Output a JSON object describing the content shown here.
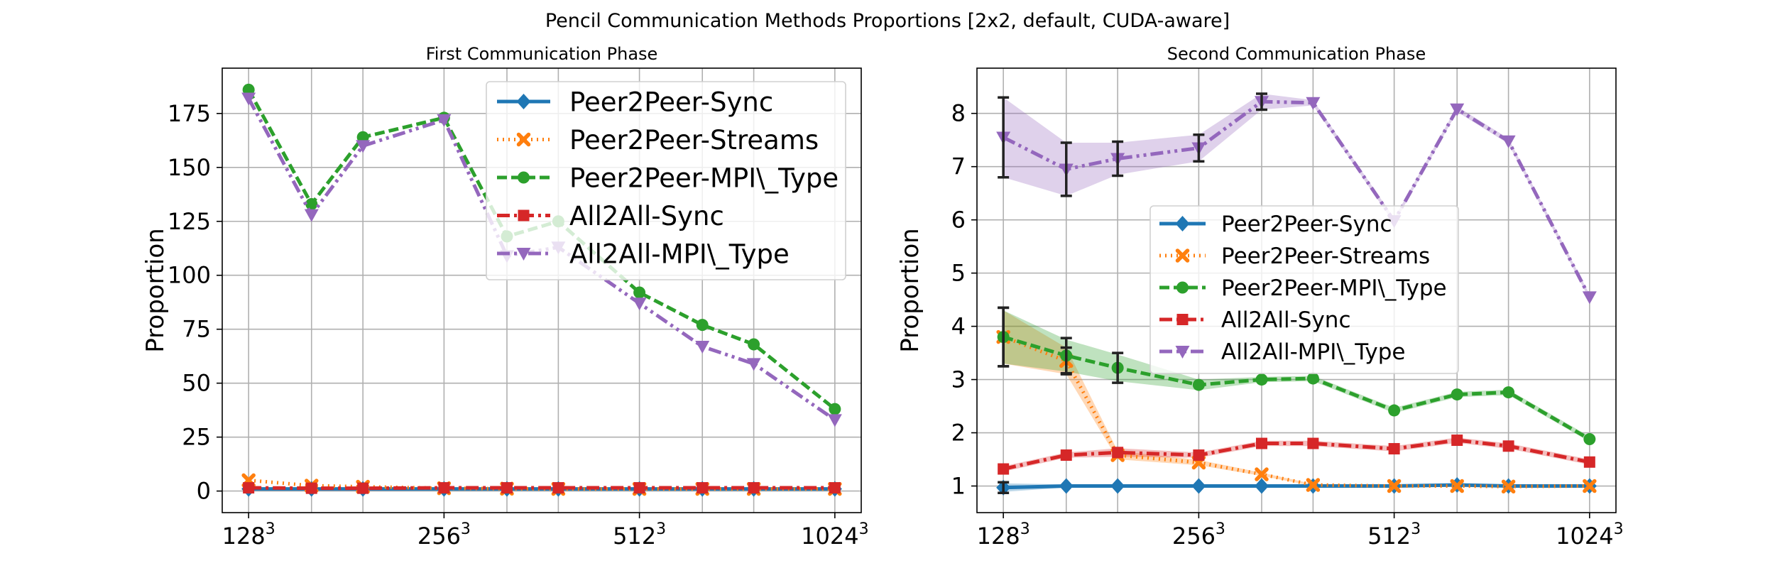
{
  "figure": {
    "suptitle": "Pencil Communication Methods Proportions [2x2, default, CUDA-aware]"
  },
  "colors": {
    "Peer2Peer-Sync": "#1f77b4",
    "Peer2Peer-Streams": "#ff7f0e",
    "Peer2Peer-MPI\\_Type": "#2ca02c",
    "All2All-Sync": "#d62728",
    "All2All-MPI\\_Type": "#9467bd"
  },
  "chart_data": [
    {
      "type": "line",
      "title": "First Communication Phase",
      "xlabel": "",
      "ylabel": "Proportion",
      "x": [
        128,
        160,
        192,
        256,
        320,
        384,
        512,
        640,
        768,
        1024
      ],
      "xscale": "log2",
      "xticks": [
        {
          "value": 128,
          "base": "128",
          "exp": "3"
        },
        {
          "value": 256,
          "base": "256",
          "exp": "3"
        },
        {
          "value": 512,
          "base": "512",
          "exp": "3"
        },
        {
          "value": 1024,
          "base": "1024",
          "exp": "3"
        }
      ],
      "yticks": [
        "0",
        "25",
        "50",
        "75",
        "100",
        "125",
        "150",
        "175"
      ],
      "ylim": [
        -10,
        196
      ],
      "grid": true,
      "legend": "top-right",
      "series": [
        {
          "name": "Peer2Peer-Sync",
          "marker": "diamond",
          "dash": "solid",
          "values": [
            1,
            1,
            1,
            1,
            1,
            1,
            1,
            1,
            1,
            1
          ]
        },
        {
          "name": "Peer2Peer-Streams",
          "marker": "x",
          "dash": "dotted",
          "values": [
            5,
            2.5,
            2,
            1.3,
            1.1,
            1,
            1,
            1,
            1,
            1
          ]
        },
        {
          "name": "Peer2Peer-MPI\\_Type",
          "marker": "circle",
          "dash": "dashed",
          "values": [
            186,
            133,
            164,
            173,
            118,
            125,
            92,
            77,
            68,
            38
          ]
        },
        {
          "name": "All2All-Sync",
          "marker": "square",
          "dash": "dashdot",
          "values": [
            1.5,
            1.3,
            1.3,
            1.5,
            1.5,
            1.5,
            1.5,
            1.5,
            1.5,
            1.5
          ]
        },
        {
          "name": "All2All-MPI\\_Type",
          "marker": "triangle-down",
          "dash": "dashdotdot",
          "values": [
            182,
            128,
            160,
            172,
            109,
            113,
            87,
            67,
            59,
            33
          ]
        }
      ]
    },
    {
      "type": "line",
      "title": "Second Communication Phase",
      "xlabel": "",
      "ylabel": "Proportion",
      "x": [
        128,
        160,
        192,
        256,
        320,
        384,
        512,
        640,
        768,
        1024
      ],
      "xscale": "log2",
      "xticks": [
        {
          "value": 128,
          "base": "128",
          "exp": "3"
        },
        {
          "value": 256,
          "base": "256",
          "exp": "3"
        },
        {
          "value": 512,
          "base": "512",
          "exp": "3"
        },
        {
          "value": 1024,
          "base": "1024",
          "exp": "3"
        }
      ],
      "yticks": [
        "1",
        "2",
        "3",
        "4",
        "5",
        "6",
        "7",
        "8"
      ],
      "ylim": [
        0.5,
        8.85
      ],
      "grid": true,
      "legend": "center",
      "series": [
        {
          "name": "Peer2Peer-Sync",
          "marker": "diamond",
          "dash": "solid",
          "values": [
            0.97,
            1.0,
            1.0,
            1.0,
            1.0,
            1.0,
            1.0,
            1.02,
            1.0,
            1.0
          ],
          "band": [
            0.08,
            0.03,
            0.03,
            0.02,
            0.02,
            0.02,
            0.02,
            0.02,
            0.02,
            0.02
          ],
          "errorbars": [
            0.1,
            0,
            0,
            0,
            0,
            0,
            0,
            0,
            0,
            0
          ]
        },
        {
          "name": "Peer2Peer-Streams",
          "marker": "x",
          "dash": "dotted",
          "values": [
            3.8,
            3.35,
            1.58,
            1.44,
            1.22,
            1.02,
            1.0,
            1.0,
            0.99,
            1.0
          ],
          "band": [
            0.5,
            0.25,
            0.08,
            0.05,
            0.03,
            0.02,
            0.02,
            0.02,
            0.02,
            0.02
          ],
          "errorbars": [
            0.55,
            0.25,
            0,
            0,
            0,
            0,
            0,
            0,
            0,
            0
          ]
        },
        {
          "name": "Peer2Peer-MPI\\_Type",
          "marker": "circle",
          "dash": "dashed",
          "values": [
            3.8,
            3.45,
            3.22,
            2.9,
            3.0,
            3.02,
            2.42,
            2.72,
            2.76,
            1.88
          ],
          "band": [
            0.5,
            0.3,
            0.25,
            0.1,
            0.05,
            0.05,
            0.05,
            0.05,
            0.05,
            0.05
          ],
          "errorbars": [
            0.55,
            0.33,
            0.28,
            0,
            0,
            0,
            0,
            0,
            0,
            0
          ]
        },
        {
          "name": "All2All-Sync",
          "marker": "square",
          "dash": "dashdot",
          "values": [
            1.32,
            1.58,
            1.63,
            1.58,
            1.8,
            1.8,
            1.7,
            1.86,
            1.75,
            1.45
          ],
          "band": [
            0.05,
            0.05,
            0.08,
            0.05,
            0.05,
            0.05,
            0.05,
            0.05,
            0.05,
            0.05
          ],
          "errorbars": [
            0,
            0,
            0,
            0,
            0,
            0,
            0,
            0,
            0,
            0
          ]
        },
        {
          "name": "All2All-MPI\\_Type",
          "marker": "triangle-down",
          "dash": "dashdotdot",
          "values": [
            7.55,
            6.95,
            7.15,
            7.35,
            8.22,
            8.2,
            5.98,
            8.08,
            7.48,
            4.55
          ],
          "band": [
            0.75,
            0.5,
            0.3,
            0.25,
            0.15,
            0.05,
            0.05,
            0.05,
            0.05,
            0.05
          ],
          "errorbars": [
            0.75,
            0.5,
            0.32,
            0.25,
            0.15,
            0,
            0,
            0,
            0,
            0
          ]
        }
      ]
    }
  ]
}
